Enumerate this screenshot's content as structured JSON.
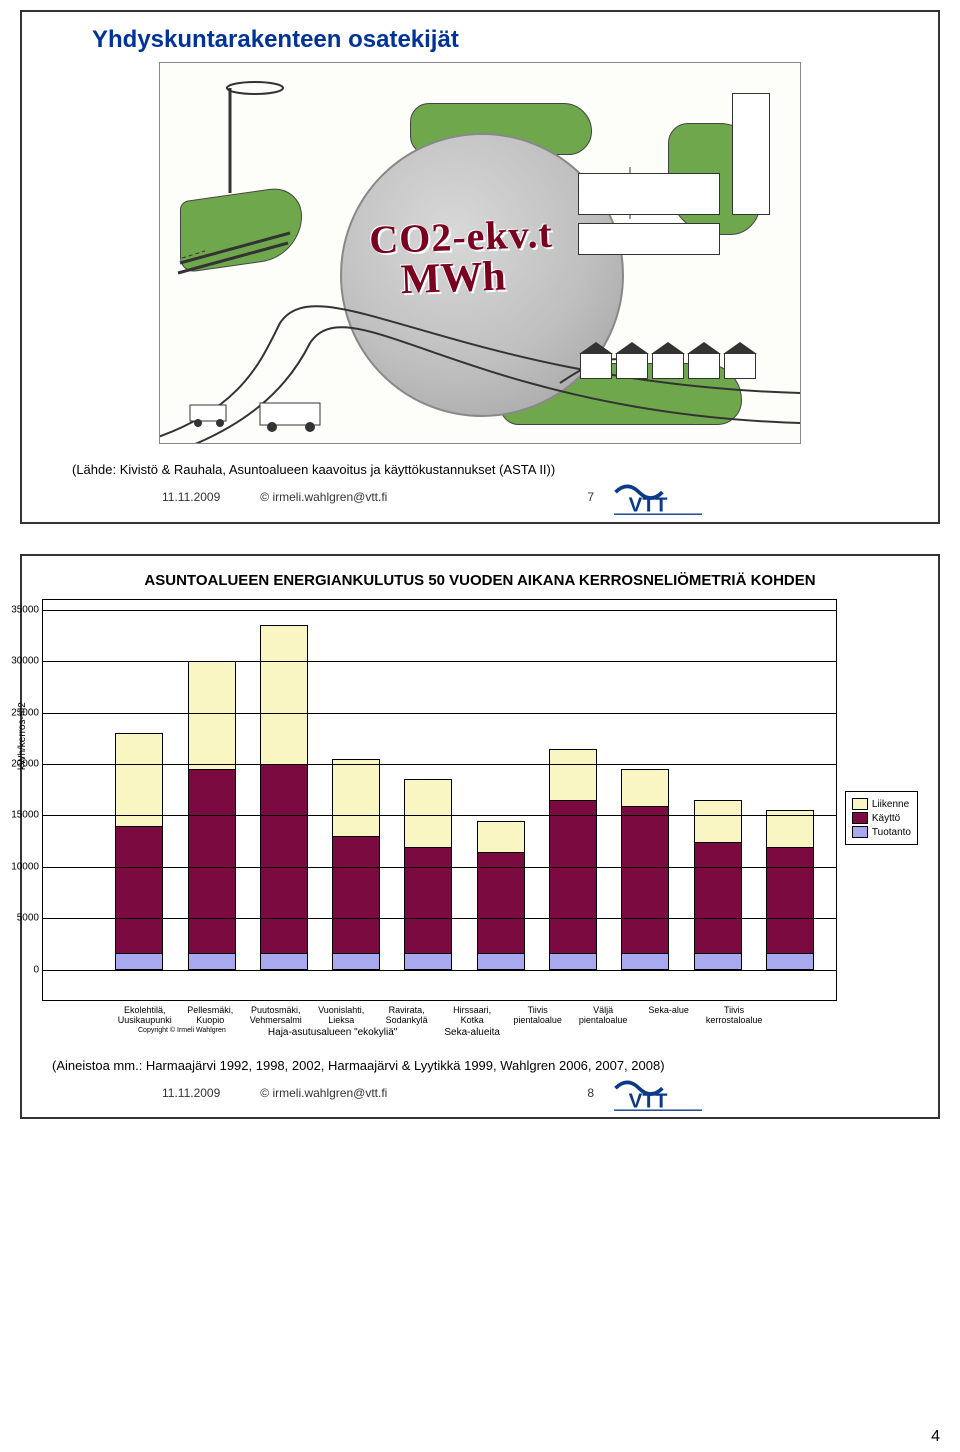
{
  "page_number": "4",
  "slide1": {
    "title": "Yhdyskuntarakenteen osatekijät",
    "overlay_line1": "CO2-ekv.t",
    "overlay_line2": "MWh",
    "source": "(Lähde: Kivistö & Rauhala, Asuntoalueen kaavoitus ja käyttökustannukset (ASTA II))",
    "footer_date": "11.11.2009",
    "footer_copy": "© irmeli.wahlgren@vtt.fi",
    "footer_page": "7",
    "logo_text": "VTT"
  },
  "slide2": {
    "chart": {
      "title": "ASUNTOALUEEN ENERGIANKULUTUS 50 VUODEN AIKANA KERROSNELIÖMETRIÄ KOHDEN",
      "yaxis_label": "kWh/kerros-m2",
      "ymax": 35000,
      "ytick_step": 5000,
      "yticks": [
        0,
        5000,
        10000,
        15000,
        20000,
        25000,
        30000,
        35000
      ],
      "colors": {
        "Liikenne": "#faf6c4",
        "Käyttö": "#7a0a40",
        "Tuotanto": "#a9a9f0"
      },
      "legend": [
        "Liikenne",
        "Käyttö",
        "Tuotanto"
      ],
      "categories": [
        {
          "label": "Ekolehtilä, Uusikaupunki",
          "tuotanto": 1500,
          "kaytto": 12500,
          "liikenne": 9000
        },
        {
          "label": "Pellesmäki, Kuopio",
          "tuotanto": 1500,
          "kaytto": 18000,
          "liikenne": 10500
        },
        {
          "label": "Puutosmäki, Vehmersalmi",
          "tuotanto": 1500,
          "kaytto": 18500,
          "liikenne": 13500
        },
        {
          "label": "Vuonislahti, Lieksa",
          "tuotanto": 1500,
          "kaytto": 11500,
          "liikenne": 7500
        },
        {
          "label": "Ravirata, Sodankylä",
          "tuotanto": 1500,
          "kaytto": 10500,
          "liikenne": 6500
        },
        {
          "label": "Hirssaari, Kotka",
          "tuotanto": 1500,
          "kaytto": 10000,
          "liikenne": 3000
        },
        {
          "label": "Tiivis pientaloalue",
          "tuotanto": 1500,
          "kaytto": 15000,
          "liikenne": 5000
        },
        {
          "label": "Väljä pientaloalue",
          "tuotanto": 1500,
          "kaytto": 14500,
          "liikenne": 3500
        },
        {
          "label": "Seka-alue",
          "tuotanto": 1500,
          "kaytto": 11000,
          "liikenne": 4000
        },
        {
          "label": "Tiivis kerrostaloalue",
          "tuotanto": 1500,
          "kaytto": 10500,
          "liikenne": 3500
        }
      ],
      "group1_label": "Haja-asutusalueen \"ekokyliä\"",
      "group2_label": "Seka-alueita",
      "copyright_tiny": "Copyright © Irmeli Wahlgren"
    },
    "aineisto": "(Aineistoa mm.: Harmaajärvi 1992, 1998, 2002, Harmaajärvi & Lyytikkä 1999, Wahlgren 2006, 2007, 2008)",
    "footer_date": "11.11.2009",
    "footer_copy": "© irmeli.wahlgren@vtt.fi",
    "footer_page": "8",
    "logo_text": "VTT"
  }
}
